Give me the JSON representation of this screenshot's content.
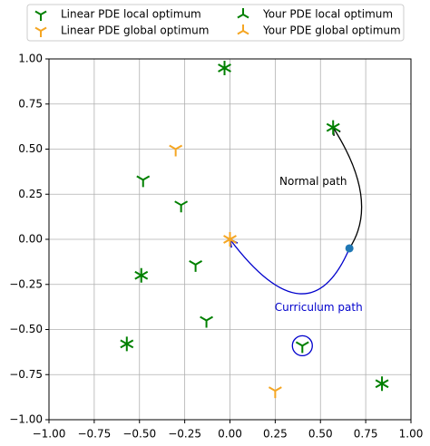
{
  "chart_data": {
    "type": "scatter",
    "xlim": [
      -1,
      1
    ],
    "ylim": [
      -1,
      1
    ],
    "xticks": [
      {
        "value": -1,
        "label": "−1.00"
      },
      {
        "value": -0.75,
        "label": "−0.75"
      },
      {
        "value": -0.5,
        "label": "−0.50"
      },
      {
        "value": -0.25,
        "label": "−0.25"
      },
      {
        "value": 0,
        "label": "0.00"
      },
      {
        "value": 0.25,
        "label": "0.25"
      },
      {
        "value": 0.5,
        "label": "0.50"
      },
      {
        "value": 0.75,
        "label": "0.75"
      },
      {
        "value": 1,
        "label": "1.00"
      }
    ],
    "yticks": [
      {
        "value": -1,
        "label": "−1.00"
      },
      {
        "value": -0.75,
        "label": "−0.75"
      },
      {
        "value": -0.5,
        "label": "−0.50"
      },
      {
        "value": -0.25,
        "label": "−0.25"
      },
      {
        "value": 0,
        "label": "0.00"
      },
      {
        "value": 0.25,
        "label": "0.25"
      },
      {
        "value": 0.5,
        "label": "0.50"
      },
      {
        "value": 0.75,
        "label": "0.75"
      },
      {
        "value": 1,
        "label": "1.00"
      }
    ],
    "grid": true,
    "legend": "above",
    "series": [
      {
        "name": "Linear PDE local optimum",
        "color": "#008000",
        "marker": "tri_down",
        "x": [
          -0.48,
          -0.27,
          -0.19,
          -0.13,
          0.4,
          -0.03,
          0.57,
          -0.49,
          -0.57,
          0.84
        ],
        "y": [
          0.33,
          0.19,
          -0.14,
          -0.45,
          -0.59,
          0.95,
          0.62,
          -0.2,
          -0.58,
          -0.8
        ]
      },
      {
        "name": "Linear PDE global optimum",
        "color": "#f5a623",
        "marker": "tri_down",
        "x": [
          -0.3,
          0.25,
          0
        ],
        "y": [
          0.5,
          -0.84,
          0
        ]
      },
      {
        "name": "Your PDE local optimum",
        "color": "#008000",
        "marker": "tri_up",
        "x": [
          -0.03,
          0.57,
          -0.49,
          -0.57,
          0.84
        ],
        "y": [
          0.95,
          0.62,
          -0.2,
          -0.58,
          -0.8
        ]
      },
      {
        "name": "Your PDE global optimum",
        "color": "#f5a623",
        "marker": "tri_up",
        "x": [
          0
        ],
        "y": [
          0
        ]
      }
    ],
    "start": {
      "x": 0.66,
      "y": -0.05,
      "color": "#1f77b4"
    },
    "highlight": {
      "x": 0.4,
      "y": -0.59,
      "color": "#0000cc"
    },
    "paths": [
      {
        "label": "Normal path",
        "color": "#000000",
        "from": [
          0.66,
          -0.05
        ],
        "to": [
          0.57,
          0.62
        ],
        "label_x": 0.46,
        "label_y": 0.32
      },
      {
        "label": "Curriculum path",
        "color": "#0000cc",
        "from": [
          0.66,
          -0.05
        ],
        "to": [
          0,
          0
        ],
        "label_x": 0.49,
        "label_y": -0.38
      }
    ]
  }
}
